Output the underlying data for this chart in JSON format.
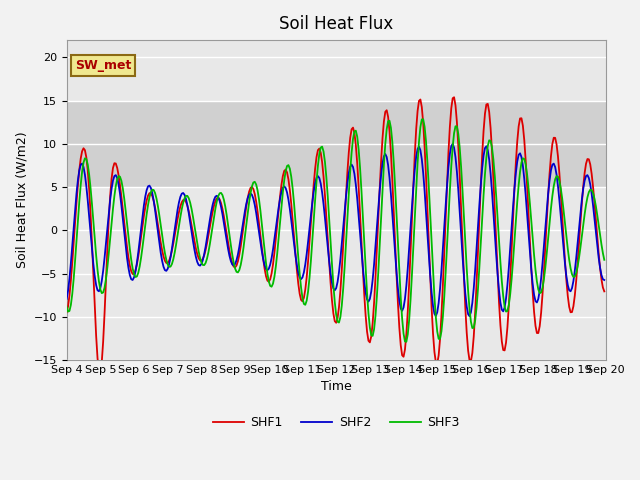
{
  "title": "Soil Heat Flux",
  "xlabel": "Time",
  "ylabel": "Soil Heat Flux (W/m2)",
  "ylim": [
    -15,
    22
  ],
  "yticks": [
    -15,
    -10,
    -5,
    0,
    5,
    10,
    15,
    20
  ],
  "shaded_band": [
    5,
    15
  ],
  "legend_entries": [
    "SHF1",
    "SHF2",
    "SHF3"
  ],
  "line_colors": [
    "#dd0000",
    "#0000cc",
    "#00bb00"
  ],
  "annotation_text": "SW_met",
  "background_color": "#e8e8e8",
  "band_color": "#d0d0d0",
  "title_fontsize": 12,
  "axis_fontsize": 9,
  "tick_fontsize": 8
}
